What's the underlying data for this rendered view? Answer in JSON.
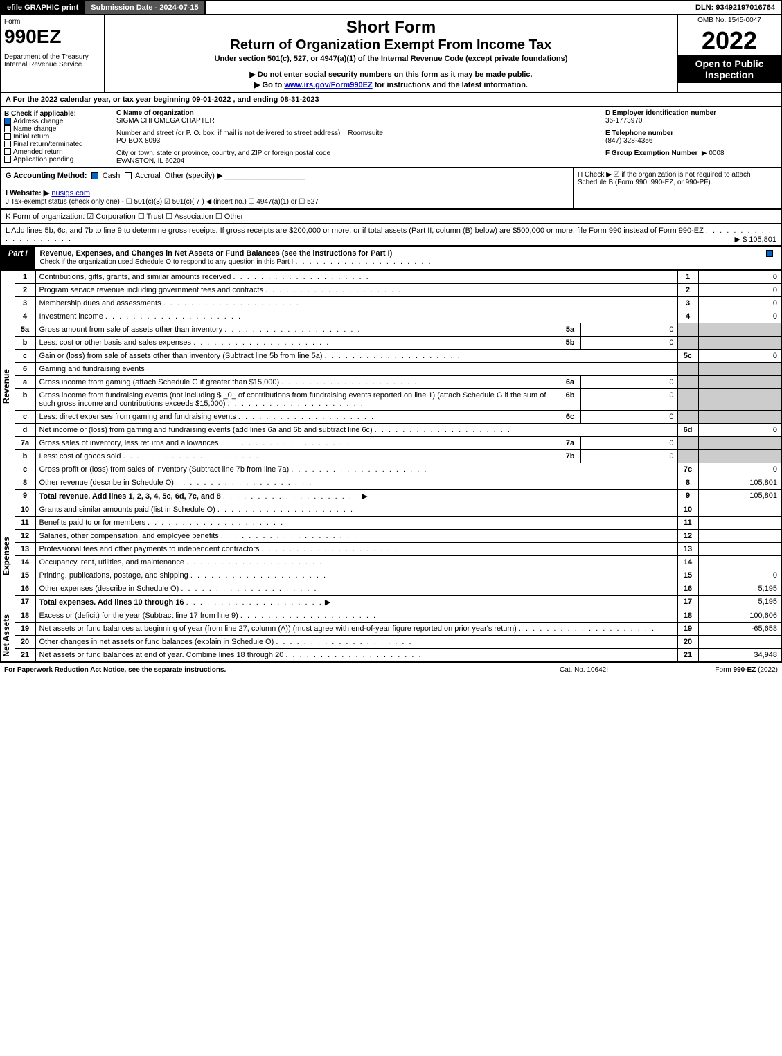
{
  "topbar": {
    "efile": "efile GRAPHIC print",
    "submission": "Submission Date - 2024-07-15",
    "dln": "DLN: 93492197016764"
  },
  "header": {
    "form_word": "Form",
    "form_num": "990EZ",
    "dept": "Department of the Treasury\nInternal Revenue Service",
    "title1": "Short Form",
    "title2": "Return of Organization Exempt From Income Tax",
    "subtitle": "Under section 501(c), 527, or 4947(a)(1) of the Internal Revenue Code (except private foundations)",
    "note1": "▶ Do not enter social security numbers on this form as it may be made public.",
    "note2_pre": "▶ Go to ",
    "note2_link": "www.irs.gov/Form990EZ",
    "note2_post": " for instructions and the latest information.",
    "omb": "OMB No. 1545-0047",
    "year": "2022",
    "inspect": "Open to Public Inspection"
  },
  "sectionA": "A  For the 2022 calendar year, or tax year beginning 09-01-2022 , and ending 08-31-2023",
  "boxB": {
    "title": "B  Check if applicable:",
    "opts": [
      "Address change",
      "Name change",
      "Initial return",
      "Final return/terminated",
      "Amended return",
      "Application pending"
    ],
    "checked": [
      true,
      false,
      false,
      false,
      false,
      false
    ]
  },
  "boxC": {
    "c_label": "C Name of organization",
    "name": "SIGMA CHI OMEGA CHAPTER",
    "addr_label": "Number and street (or P. O. box, if mail is not delivered to street address)",
    "room": "Room/suite",
    "addr": "PO BOX 8093",
    "city_label": "City or town, state or province, country, and ZIP or foreign postal code",
    "city": "EVANSTON, IL  60204"
  },
  "boxDEF": {
    "d_label": "D Employer identification number",
    "d_val": "36-1773970",
    "e_label": "E Telephone number",
    "e_val": "(847) 328-4356",
    "f_label": "F Group Exemption Number",
    "f_val": "▶ 0008"
  },
  "rowG": {
    "label": "G Accounting Method:",
    "cash": "Cash",
    "accrual": "Accrual",
    "other": "Other (specify) ▶"
  },
  "rowH": {
    "text": "H  Check ▶ ☑ if the organization is not required to attach Schedule B (Form 990, 990-EZ, or 990-PF)."
  },
  "rowI": {
    "label": "I Website: ▶",
    "val": "nusigs.com"
  },
  "rowJ": "J Tax-exempt status (check only one) - ☐ 501(c)(3) ☑ 501(c)( 7 ) ◀ (insert no.) ☐ 4947(a)(1) or ☐ 527",
  "rowK": "K Form of organization: ☑ Corporation  ☐ Trust  ☐ Association  ☐ Other",
  "rowL": {
    "text": "L Add lines 5b, 6c, and 7b to line 9 to determine gross receipts. If gross receipts are $200,000 or more, or if total assets (Part II, column (B) below) are $500,000 or more, file Form 990 instead of Form 990-EZ",
    "val": "▶ $ 105,801"
  },
  "partI": {
    "label": "Part I",
    "title": "Revenue, Expenses, and Changes in Net Assets or Fund Balances (see the instructions for Part I)",
    "sub": "Check if the organization used Schedule O to respond to any question in this Part I"
  },
  "vert": {
    "rev": "Revenue",
    "exp": "Expenses",
    "net": "Net Assets"
  },
  "lines": [
    {
      "n": "1",
      "d": "Contributions, gifts, grants, and similar amounts received",
      "ln": "1",
      "v": "0"
    },
    {
      "n": "2",
      "d": "Program service revenue including government fees and contracts",
      "ln": "2",
      "v": "0"
    },
    {
      "n": "3",
      "d": "Membership dues and assessments",
      "ln": "3",
      "v": "0"
    },
    {
      "n": "4",
      "d": "Investment income",
      "ln": "4",
      "v": "0"
    },
    {
      "n": "5a",
      "d": "Gross amount from sale of assets other than inventory",
      "sl": "5a",
      "sv": "0"
    },
    {
      "n": "b",
      "d": "Less: cost or other basis and sales expenses",
      "sl": "5b",
      "sv": "0"
    },
    {
      "n": "c",
      "d": "Gain or (loss) from sale of assets other than inventory (Subtract line 5b from line 5a)",
      "ln": "5c",
      "v": "0"
    },
    {
      "n": "6",
      "d": "Gaming and fundraising events"
    },
    {
      "n": "a",
      "d": "Gross income from gaming (attach Schedule G if greater than $15,000)",
      "sl": "6a",
      "sv": "0"
    },
    {
      "n": "b",
      "d": "Gross income from fundraising events (not including $ _0_ of contributions from fundraising events reported on line 1) (attach Schedule G if the sum of such gross income and contributions exceeds $15,000)",
      "sl": "6b",
      "sv": "0"
    },
    {
      "n": "c",
      "d": "Less: direct expenses from gaming and fundraising events",
      "sl": "6c",
      "sv": "0"
    },
    {
      "n": "d",
      "d": "Net income or (loss) from gaming and fundraising events (add lines 6a and 6b and subtract line 6c)",
      "ln": "6d",
      "v": "0"
    },
    {
      "n": "7a",
      "d": "Gross sales of inventory, less returns and allowances",
      "sl": "7a",
      "sv": "0"
    },
    {
      "n": "b",
      "d": "Less: cost of goods sold",
      "sl": "7b",
      "sv": "0"
    },
    {
      "n": "c",
      "d": "Gross profit or (loss) from sales of inventory (Subtract line 7b from line 7a)",
      "ln": "7c",
      "v": "0"
    },
    {
      "n": "8",
      "d": "Other revenue (describe in Schedule O)",
      "ln": "8",
      "v": "105,801"
    },
    {
      "n": "9",
      "d": "Total revenue. Add lines 1, 2, 3, 4, 5c, 6d, 7c, and 8",
      "ln": "9",
      "v": "105,801",
      "bold": true,
      "arrow": true
    },
    {
      "n": "10",
      "d": "Grants and similar amounts paid (list in Schedule O)",
      "ln": "10",
      "v": ""
    },
    {
      "n": "11",
      "d": "Benefits paid to or for members",
      "ln": "11",
      "v": ""
    },
    {
      "n": "12",
      "d": "Salaries, other compensation, and employee benefits",
      "ln": "12",
      "v": ""
    },
    {
      "n": "13",
      "d": "Professional fees and other payments to independent contractors",
      "ln": "13",
      "v": ""
    },
    {
      "n": "14",
      "d": "Occupancy, rent, utilities, and maintenance",
      "ln": "14",
      "v": ""
    },
    {
      "n": "15",
      "d": "Printing, publications, postage, and shipping",
      "ln": "15",
      "v": "0"
    },
    {
      "n": "16",
      "d": "Other expenses (describe in Schedule O)",
      "ln": "16",
      "v": "5,195"
    },
    {
      "n": "17",
      "d": "Total expenses. Add lines 10 through 16",
      "ln": "17",
      "v": "5,195",
      "bold": true,
      "arrow": true
    },
    {
      "n": "18",
      "d": "Excess or (deficit) for the year (Subtract line 17 from line 9)",
      "ln": "18",
      "v": "100,606"
    },
    {
      "n": "19",
      "d": "Net assets or fund balances at beginning of year (from line 27, column (A)) (must agree with end-of-year figure reported on prior year's return)",
      "ln": "19",
      "v": "-65,658"
    },
    {
      "n": "20",
      "d": "Other changes in net assets or fund balances (explain in Schedule O)",
      "ln": "20",
      "v": ""
    },
    {
      "n": "21",
      "d": "Net assets or fund balances at end of year. Combine lines 18 through 20",
      "ln": "21",
      "v": "34,948"
    }
  ],
  "footer": {
    "left": "For Paperwork Reduction Act Notice, see the separate instructions.",
    "mid": "Cat. No. 10642I",
    "right_pre": "Form ",
    "right_bold": "990-EZ",
    "right_post": " (2022)"
  }
}
